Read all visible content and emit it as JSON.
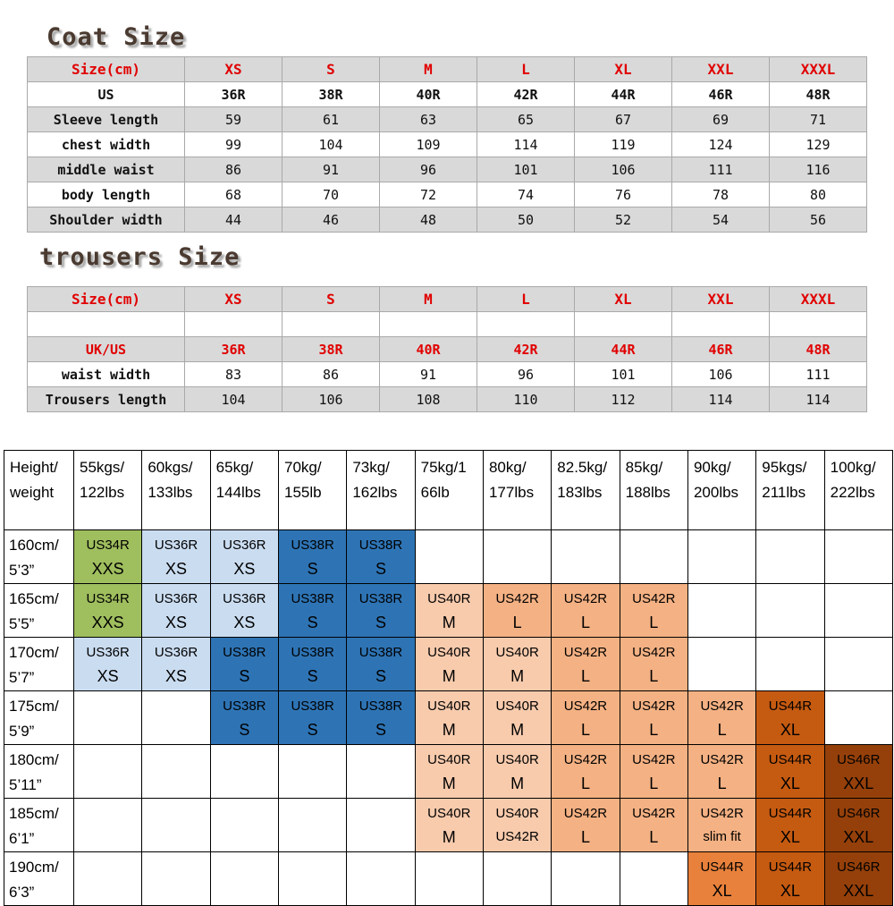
{
  "colors": {
    "red_text": "#e10000",
    "shade": "#d9d9d9",
    "table_border": "#a9a9a9",
    "matrix_border": "#000000",
    "title_color": "#4a3a30",
    "title_shadow": "#a8a8a8",
    "green": "#9fbe5e",
    "xs_blue": "#cadcf0",
    "s_blue": "#2e74b5",
    "m_peach": "#f8cbad",
    "l_orange": "#f4b183",
    "xl_orange": "#c55a11",
    "xl_orange_light": "#e8813c",
    "xxl_brown": "#95400a"
  },
  "coat": {
    "title": "Coat Size",
    "header": [
      "Size(cm)",
      "XS",
      "S",
      "M",
      "L",
      "XL",
      "XXL",
      "XXXL"
    ],
    "rows": [
      {
        "label": "US",
        "values": [
          "36R",
          "38R",
          "40R",
          "42R",
          "44R",
          "46R",
          "48R"
        ],
        "shade": false,
        "bold": true
      },
      {
        "label": "Sleeve length",
        "values": [
          "59",
          "61",
          "63",
          "65",
          "67",
          "69",
          "71"
        ],
        "shade": true
      },
      {
        "label": "chest width",
        "values": [
          "99",
          "104",
          "109",
          "114",
          "119",
          "124",
          "129"
        ],
        "shade": false
      },
      {
        "label": "middle waist",
        "values": [
          "86",
          "91",
          "96",
          "101",
          "106",
          "111",
          "116"
        ],
        "shade": true
      },
      {
        "label": "body length",
        "values": [
          "68",
          "70",
          "72",
          "74",
          "76",
          "78",
          "80"
        ],
        "shade": false
      },
      {
        "label": "Shoulder width",
        "values": [
          "44",
          "46",
          "48",
          "50",
          "52",
          "54",
          "56"
        ],
        "shade": true
      }
    ]
  },
  "trousers": {
    "title": "trousers Size",
    "header": [
      "Size(cm)",
      "XS",
      "S",
      "M",
      "L",
      "XL",
      "XXL",
      "XXXL"
    ],
    "rows": [
      {
        "label": "",
        "values": [
          "",
          "",
          "",
          "",
          "",
          "",
          ""
        ],
        "shade": false
      },
      {
        "label": "UK/US",
        "values": [
          "36R",
          "38R",
          "40R",
          "42R",
          "44R",
          "46R",
          "48R"
        ],
        "shade": true,
        "red": true
      },
      {
        "label": "waist width",
        "values": [
          "83",
          "86",
          "91",
          "96",
          "101",
          "106",
          "111"
        ],
        "shade": false
      },
      {
        "label": "Trousers length",
        "values": [
          "104",
          "106",
          "108",
          "110",
          "112",
          "114",
          "114"
        ],
        "shade": true
      }
    ]
  },
  "matrix": {
    "corner": [
      "Height/",
      "weight"
    ],
    "weights": [
      [
        "55kgs/",
        "122lbs"
      ],
      [
        "60kgs/",
        "133lbs"
      ],
      [
        "65kg/",
        "144lbs"
      ],
      [
        "70kg/",
        "155lb"
      ],
      [
        "73kg/",
        "162lbs"
      ],
      [
        "75kg/1",
        "66lb"
      ],
      [
        "80kg/",
        "177lbs"
      ],
      [
        "82.5kg/",
        "183lbs"
      ],
      [
        "85kg/",
        "188lbs"
      ],
      [
        "90kg/",
        "200lbs"
      ],
      [
        "95kgs/",
        "211lbs"
      ],
      [
        "100kg/",
        "222lbs"
      ]
    ],
    "rows": [
      {
        "height": [
          "160cm/",
          "5’3”"
        ],
        "cells": [
          {
            "c": "green",
            "l": [
              "US34R",
              "XXS"
            ]
          },
          {
            "c": "xs",
            "l": [
              "US36R",
              "XS"
            ]
          },
          {
            "c": "xs",
            "l": [
              "US36R",
              "XS"
            ]
          },
          {
            "c": "s",
            "l": [
              "US38R",
              "S"
            ]
          },
          {
            "c": "s",
            "l": [
              "US38R",
              "S"
            ]
          },
          null,
          null,
          null,
          null,
          null,
          null,
          null
        ]
      },
      {
        "height": [
          "165cm/",
          "5’5”"
        ],
        "cells": [
          {
            "c": "green",
            "l": [
              "US34R",
              "XXS"
            ]
          },
          {
            "c": "xs",
            "l": [
              "US36R",
              "XS"
            ]
          },
          {
            "c": "xs",
            "l": [
              "US36R",
              "XS"
            ]
          },
          {
            "c": "s",
            "l": [
              "US38R",
              "S"
            ]
          },
          {
            "c": "s",
            "l": [
              "US38R",
              "S"
            ]
          },
          {
            "c": "m",
            "l": [
              "US40R",
              "M"
            ]
          },
          {
            "c": "l",
            "l": [
              "US42R",
              "L"
            ]
          },
          {
            "c": "l",
            "l": [
              "US42R",
              "L"
            ]
          },
          {
            "c": "l",
            "l": [
              "US42R",
              "L"
            ]
          },
          null,
          null,
          null
        ]
      },
      {
        "height": [
          "170cm/",
          "5’7”"
        ],
        "cells": [
          {
            "c": "xs",
            "l": [
              "US36R",
              "XS"
            ]
          },
          {
            "c": "xs",
            "l": [
              "US36R",
              "XS"
            ]
          },
          {
            "c": "s",
            "l": [
              "US38R",
              "S"
            ]
          },
          {
            "c": "s",
            "l": [
              "US38R",
              "S"
            ]
          },
          {
            "c": "s",
            "l": [
              "US38R",
              "S"
            ]
          },
          {
            "c": "m",
            "l": [
              "US40R",
              "M"
            ]
          },
          {
            "c": "m",
            "l": [
              "US40R",
              "M"
            ]
          },
          {
            "c": "l",
            "l": [
              "US42R",
              "L"
            ]
          },
          {
            "c": "l",
            "l": [
              "US42R",
              "L"
            ]
          },
          null,
          null,
          null
        ]
      },
      {
        "height": [
          "175cm/",
          "5’9”"
        ],
        "cells": [
          null,
          null,
          {
            "c": "s",
            "l": [
              "US38R",
              "S"
            ]
          },
          {
            "c": "s",
            "l": [
              "US38R",
              "S"
            ]
          },
          {
            "c": "s",
            "l": [
              "US38R",
              "S"
            ]
          },
          {
            "c": "m",
            "l": [
              "US40R",
              "M"
            ]
          },
          {
            "c": "m",
            "l": [
              "US40R",
              "M"
            ]
          },
          {
            "c": "l",
            "l": [
              "US42R",
              "L"
            ]
          },
          {
            "c": "l",
            "l": [
              "US42R",
              "L"
            ]
          },
          {
            "c": "l",
            "l": [
              "US42R",
              "L"
            ]
          },
          {
            "c": "xl",
            "l": [
              "US44R",
              "XL"
            ]
          },
          null
        ]
      },
      {
        "height": [
          "180cm/",
          "5’11”"
        ],
        "cells": [
          null,
          null,
          null,
          null,
          null,
          {
            "c": "m",
            "l": [
              "US40R",
              "M"
            ]
          },
          {
            "c": "m",
            "l": [
              "US40R",
              "M"
            ]
          },
          {
            "c": "l",
            "l": [
              "US42R",
              "L"
            ]
          },
          {
            "c": "l",
            "l": [
              "US42R",
              "L"
            ]
          },
          {
            "c": "l",
            "l": [
              "US42R",
              "L"
            ]
          },
          {
            "c": "xl",
            "l": [
              "US44R",
              "XL"
            ]
          },
          {
            "c": "xxl",
            "l": [
              "US46R",
              "XXL"
            ]
          }
        ]
      },
      {
        "height": [
          "185cm/",
          "6’1”"
        ],
        "cells": [
          null,
          null,
          null,
          null,
          null,
          {
            "c": "m",
            "l": [
              "US40R",
              "M"
            ]
          },
          {
            "c": "m",
            "l": [
              "US40R",
              "US42R"
            ],
            "eq": true
          },
          {
            "c": "l",
            "l": [
              "US42R",
              "L"
            ]
          },
          {
            "c": "l",
            "l": [
              "US42R",
              "L"
            ]
          },
          {
            "c": "l",
            "l": [
              "US42R",
              "slim fit"
            ],
            "eq": true
          },
          {
            "c": "xl",
            "l": [
              "US44R",
              "XL"
            ]
          },
          {
            "c": "xxl",
            "l": [
              "US46R",
              "XXL"
            ]
          }
        ]
      },
      {
        "height": [
          "190cm/",
          "6’3”"
        ],
        "cells": [
          null,
          null,
          null,
          null,
          null,
          null,
          null,
          null,
          null,
          {
            "c": "xll",
            "l": [
              "US44R",
              "XL"
            ]
          },
          {
            "c": "xl",
            "l": [
              "US44R",
              "XL"
            ]
          },
          {
            "c": "xxl",
            "l": [
              "US46R",
              "XXL"
            ]
          }
        ]
      }
    ]
  }
}
